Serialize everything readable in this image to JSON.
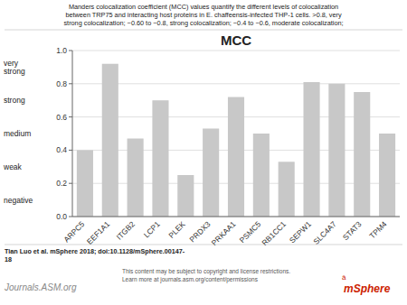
{
  "chart_data": {
    "type": "bar",
    "title": "MCC",
    "subtitle": [
      "Manders colocalization coefficient (MCC) values quantify the different levels of colocalization",
      "between TRP75 and interacting host proteins in E. chaffeensis-infected THP-1 cells. >0.8, very",
      "strong colocalization; ~0.60 to ~0.8, strong colocalization; ~0.4 to ~0.6, moderate colocalization;"
    ],
    "categories": [
      "ARPC5",
      "EEF1A1",
      "ITGB2",
      "LCP1",
      "PLEK",
      "PRDX3",
      "PRKAA1",
      "PSMC5",
      "RB1CC1",
      "SEPW1",
      "SLC4A7",
      "STAT3",
      "TPM4"
    ],
    "values": [
      0.4,
      0.92,
      0.47,
      0.7,
      0.25,
      0.53,
      0.72,
      0.5,
      0.33,
      0.81,
      0.8,
      0.75,
      0.5
    ],
    "color": "#c8c8c8",
    "ylim": [
      0.0,
      1.0
    ],
    "yticks": [
      {
        "value": 0.0,
        "label": "0.0"
      },
      0.2,
      0.4,
      0.6,
      0.8,
      {
        "value": 1.0,
        "label": "1.0"
      }
    ],
    "grid": true,
    "annotations": [
      {
        "text": "very\nstrong",
        "y": 0.9
      },
      {
        "text": "strong",
        "y": 0.7
      },
      {
        "text": "medium",
        "y": 0.5
      },
      {
        "text": "weak",
        "y": 0.3
      },
      {
        "text": "negative",
        "y": 0.1
      },
      {
        "text": "Tian Luo et al. mSphere 2018; doi:10.1128/mSphere.00147-"
      },
      {
        "text": "18"
      },
      {
        "text": "Journals.ASM.org"
      },
      {
        "text": "This content may be subject to copyright and license restrictions.\nLearn more at journals.asm.org/content/permissions"
      },
      {
        "text": "mSphere"
      },
      {
        "text": "â"
      }
    ]
  }
}
